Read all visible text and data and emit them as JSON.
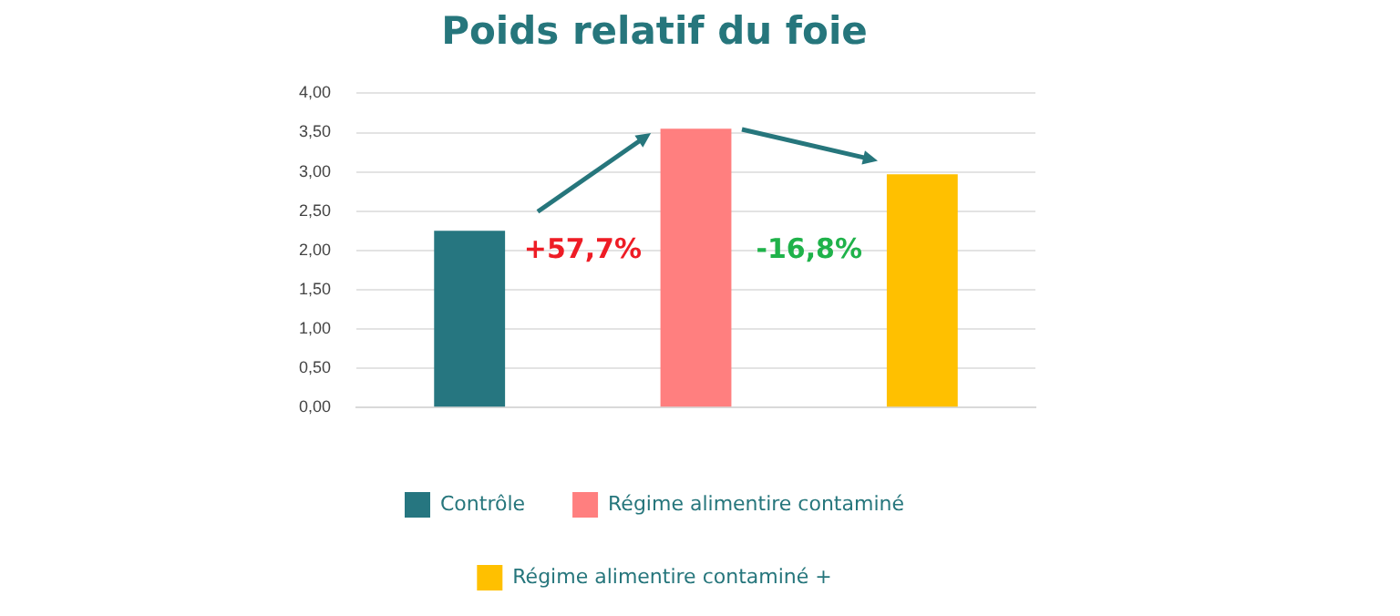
{
  "chart_data": {
    "type": "bar",
    "title": "Poids relatif du foie",
    "categories": [
      null,
      null,
      null
    ],
    "series": [
      {
        "name": "Contrôle",
        "color": "#267680",
        "values": [
          2.25,
          null,
          null
        ]
      },
      {
        "name": "Régime alimentire contaminé",
        "color": "#ff7f7f",
        "values": [
          null,
          3.55,
          null
        ]
      },
      {
        "name": "Régime alimentire contaminé +",
        "color": "#ffc000",
        "values": [
          null,
          null,
          2.97
        ]
      }
    ],
    "ylim": [
      0,
      4
    ],
    "yticks": [
      {
        "value": 0,
        "label": "0,00"
      },
      {
        "value": 0.5,
        "label": "0,50"
      },
      {
        "value": 1,
        "label": "1,00"
      },
      {
        "value": 1.5,
        "label": "1,50"
      },
      {
        "value": 2,
        "label": "2,00"
      },
      {
        "value": 2.5,
        "label": "2,50"
      },
      {
        "value": 3,
        "label": "3,00"
      },
      {
        "value": 3.5,
        "label": "3,50"
      },
      {
        "value": 4,
        "label": "4,00"
      }
    ],
    "annotations": [
      "+57,7%",
      "-16,8%"
    ],
    "grid": "y",
    "legend": "bottom"
  }
}
